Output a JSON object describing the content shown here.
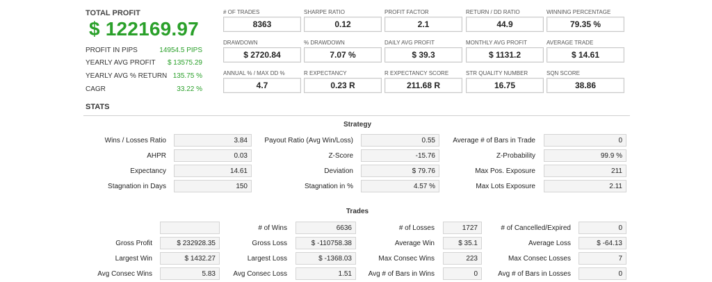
{
  "summary": {
    "total_profit_label": "TOTAL PROFIT",
    "total_profit_value": "$ 122169.97",
    "rows": [
      {
        "label": "PROFIT IN PIPS",
        "value": "14954.5 PIPS"
      },
      {
        "label": "YEARLY AVG PROFIT",
        "value": "$ 13575.29"
      },
      {
        "label": "YEARLY AVG % RETURN",
        "value": "135.75 %"
      },
      {
        "label": "CAGR",
        "value": "33.22 %"
      }
    ]
  },
  "metrics": [
    {
      "label": "# OF TRADES",
      "value": "8363"
    },
    {
      "label": "SHARPE RATIO",
      "value": "0.12"
    },
    {
      "label": "PROFIT FACTOR",
      "value": "2.1"
    },
    {
      "label": "RETURN / DD RATIO",
      "value": "44.9"
    },
    {
      "label": "WINNING PERCENTAGE",
      "value": "79.35 %"
    },
    {
      "label": "DRAWDOWN",
      "value": "$ 2720.84"
    },
    {
      "label": "% DRAWDOWN",
      "value": "7.07 %"
    },
    {
      "label": "DAILY AVG PROFIT",
      "value": "$ 39.3"
    },
    {
      "label": "MONTHLY AVG PROFIT",
      "value": "$ 1131.2"
    },
    {
      "label": "AVERAGE TRADE",
      "value": "$ 14.61"
    },
    {
      "label": "ANNUAL % / MAX DD %",
      "value": "4.7"
    },
    {
      "label": "R EXPECTANCY",
      "value": "0.23 R"
    },
    {
      "label": "R EXPECTANCY SCORE",
      "value": "211.68 R"
    },
    {
      "label": "STR QUALITY NUMBER",
      "value": "16.75"
    },
    {
      "label": "SQN SCORE",
      "value": "38.86"
    }
  ],
  "stats_title": "STATS",
  "strategy": {
    "title": "Strategy",
    "rows": [
      [
        {
          "label": "Wins / Losses Ratio",
          "value": "3.84"
        },
        {
          "label": "Payout Ratio (Avg Win/Loss)",
          "value": "0.55"
        },
        {
          "label": "Average # of Bars in Trade",
          "value": "0"
        }
      ],
      [
        {
          "label": "AHPR",
          "value": "0.03"
        },
        {
          "label": "Z-Score",
          "value": "-15.76"
        },
        {
          "label": "Z-Probability",
          "value": "99.9 %"
        }
      ],
      [
        {
          "label": "Expectancy",
          "value": "14.61"
        },
        {
          "label": "Deviation",
          "value": "$ 79.76"
        },
        {
          "label": "Max Pos. Exposure",
          "value": "211"
        }
      ],
      [
        {
          "label": "Stagnation in Days",
          "value": "150"
        },
        {
          "label": "Stagnation in %",
          "value": "4.57 %"
        },
        {
          "label": "Max Lots Exposure",
          "value": "2.11"
        }
      ]
    ]
  },
  "trades": {
    "title": "Trades",
    "rows": [
      [
        {
          "label": "",
          "value": ""
        },
        {
          "label": "# of Wins",
          "value": "6636"
        },
        {
          "label": "# of Losses",
          "value": "1727"
        },
        {
          "label": "# of Cancelled/Expired",
          "value": "0"
        }
      ],
      [
        {
          "label": "Gross Profit",
          "value": "$ 232928.35"
        },
        {
          "label": "Gross Loss",
          "value": "$ -110758.38"
        },
        {
          "label": "Average Win",
          "value": "$ 35.1"
        },
        {
          "label": "Average Loss",
          "value": "$ -64.13"
        }
      ],
      [
        {
          "label": "Largest Win",
          "value": "$ 1432.27"
        },
        {
          "label": "Largest Loss",
          "value": "$ -1368.03"
        },
        {
          "label": "Max Consec Wins",
          "value": "223"
        },
        {
          "label": "Max Consec Losses",
          "value": "7"
        }
      ],
      [
        {
          "label": "Avg Consec Wins",
          "value": "5.83"
        },
        {
          "label": "Avg Consec Loss",
          "value": "1.51"
        },
        {
          "label": "Avg # of Bars in Wins",
          "value": "0"
        },
        {
          "label": "Avg # of Bars in Losses",
          "value": "0"
        }
      ]
    ]
  }
}
